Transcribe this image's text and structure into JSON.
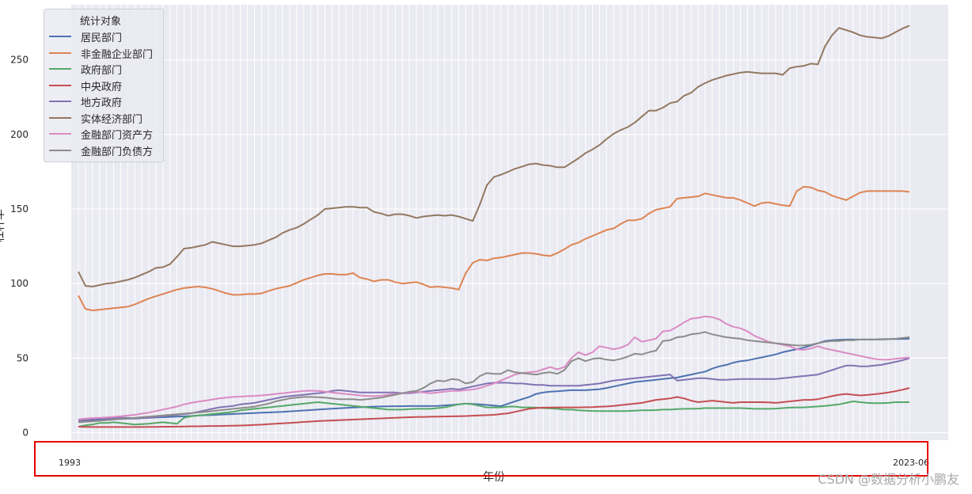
{
  "chart_data": {
    "type": "line",
    "xlabel": "年份",
    "ylabel": "杠杆率",
    "ylim": [
      -5,
      287
    ],
    "yticks": [
      0,
      50,
      100,
      150,
      200,
      250
    ],
    "x_first_label": "1993",
    "x_last_label": "2023-06",
    "grid": true,
    "legend": {
      "title": "统计对象",
      "placement": "top-left"
    },
    "n_points": 119,
    "series": [
      {
        "name": "居民部门",
        "color": "#4c72b0",
        "values": [
          8.0,
          8.2,
          8.4,
          8.6,
          8.8,
          9.0,
          9.2,
          9.4,
          9.6,
          9.8,
          10.0,
          10.2,
          10.4,
          10.6,
          10.8,
          11.0,
          11.2,
          11.5,
          11.7,
          11.9,
          12.1,
          12.3,
          12.5,
          12.8,
          13.0,
          13.2,
          13.4,
          13.6,
          13.8,
          14.0,
          14.3,
          14.6,
          14.9,
          15.2,
          15.5,
          15.8,
          16.1,
          16.4,
          16.6,
          16.9,
          17.1,
          17.3,
          17.5,
          17.6,
          17.7,
          17.8,
          17.8,
          17.9,
          17.9,
          17.9,
          17.9,
          18.0,
          18.3,
          18.6,
          19.0,
          19.5,
          19.3,
          19.0,
          18.6,
          18.2,
          17.8,
          19.5,
          21.0,
          22.5,
          24.0,
          26.0,
          27.0,
          27.5,
          27.8,
          28.2,
          28.5,
          28.5,
          28.5,
          28.8,
          29.2,
          30.0,
          31.0,
          32.0,
          33.0,
          34.0,
          34.5,
          35.0,
          35.5,
          36.0,
          36.5,
          37.0,
          38.0,
          39.0,
          40.0,
          41.0,
          43.0,
          44.5,
          45.5,
          47.0,
          48.0,
          48.5,
          49.5,
          50.5,
          51.5,
          52.5,
          54.0,
          55.0,
          56.0,
          57.0,
          58.5,
          60.0,
          61.5,
          62.0,
          62.3,
          62.5,
          62.5,
          62.5,
          62.5,
          62.5,
          62.7,
          62.8,
          62.8,
          62.9,
          63.0
        ]
      },
      {
        "name": "非金融企业部门",
        "color": "#dd8452",
        "values": [
          92,
          83,
          82,
          82.5,
          83,
          83.5,
          84,
          84.5,
          86,
          88,
          90,
          91.5,
          93,
          94.5,
          96,
          97,
          97.5,
          98,
          97.5,
          96.5,
          95,
          93.5,
          92.5,
          92.5,
          93,
          93,
          93.5,
          95,
          96.5,
          97.5,
          98.5,
          100.5,
          102.5,
          104,
          105.5,
          106.5,
          106.5,
          106,
          106,
          107,
          104,
          103,
          101.5,
          102.5,
          102.5,
          101,
          100,
          100.5,
          101,
          99.5,
          97.5,
          98,
          97.5,
          97,
          96,
          107,
          114,
          116,
          115.5,
          117,
          117.5,
          118.5,
          119.5,
          120.5,
          120.5,
          120,
          119,
          118.5,
          120.5,
          123,
          126,
          127.5,
          130,
          132,
          134,
          136,
          137,
          140,
          142.5,
          142.5,
          143.5,
          147,
          149.5,
          150.5,
          151.5,
          157,
          157.5,
          158,
          158.5,
          160.5,
          159.5,
          158.5,
          157.5,
          157.5,
          156,
          154,
          152,
          154,
          154.5,
          153.5,
          152.5,
          152,
          162,
          165,
          164.5,
          162.5,
          161.5,
          159,
          157.5,
          156,
          158.5,
          161,
          162,
          162,
          162,
          162,
          162,
          162,
          161.5
        ]
      },
      {
        "name": "政府部门",
        "color": "#55a868",
        "values": [
          4.0,
          5.0,
          5.5,
          6.5,
          6.5,
          7.0,
          6.5,
          6.0,
          5.5,
          5.8,
          6.0,
          6.5,
          7.0,
          6.5,
          6.0,
          10.0,
          11.0,
          11.5,
          12.0,
          12.5,
          13.0,
          13.5,
          14.0,
          15.0,
          15.5,
          16.0,
          16.5,
          17.0,
          17.5,
          18.0,
          18.5,
          19.0,
          19.5,
          20.0,
          20.5,
          20.0,
          19.5,
          19.0,
          18.5,
          18.0,
          17.5,
          17.0,
          16.5,
          16.0,
          15.5,
          15.5,
          15.5,
          15.8,
          16.0,
          16.0,
          16.0,
          16.5,
          17.0,
          18.0,
          19.0,
          19.5,
          19.0,
          18.0,
          17.0,
          17.0,
          17.0,
          17.5,
          17.5,
          17.0,
          17.0,
          16.8,
          16.5,
          16.3,
          16.0,
          15.5,
          15.5,
          15.0,
          14.8,
          14.6,
          14.5,
          14.5,
          14.5,
          14.5,
          14.6,
          14.8,
          15.0,
          15.0,
          15.2,
          15.5,
          15.5,
          15.8,
          16.0,
          16.0,
          16.2,
          16.5,
          16.5,
          16.5,
          16.5,
          16.5,
          16.5,
          16.3,
          16.0,
          16.0,
          16.0,
          16.2,
          16.5,
          16.8,
          17.0,
          17.0,
          17.3,
          17.6,
          18.0,
          18.5,
          19.0,
          20.0,
          21.0,
          20.5,
          20.0,
          19.8,
          19.8,
          20.0,
          20.5,
          20.5,
          20.5
        ]
      },
      {
        "name": "中央政府",
        "color": "#c44e52",
        "values": [
          4.0,
          3.9,
          3.8,
          3.8,
          3.8,
          3.8,
          3.8,
          3.8,
          3.8,
          3.8,
          3.9,
          3.9,
          4.0,
          4.0,
          4.1,
          4.2,
          4.3,
          4.3,
          4.4,
          4.5,
          4.5,
          4.6,
          4.7,
          4.8,
          5.0,
          5.2,
          5.4,
          5.7,
          6.0,
          6.3,
          6.6,
          6.9,
          7.2,
          7.5,
          7.8,
          8.0,
          8.2,
          8.4,
          8.6,
          8.8,
          9.0,
          9.2,
          9.4,
          9.6,
          9.8,
          10.0,
          10.2,
          10.4,
          10.5,
          10.6,
          10.7,
          10.8,
          10.9,
          11.0,
          11.1,
          11.2,
          11.4,
          11.6,
          11.8,
          12.0,
          12.5,
          13.0,
          14.0,
          15.0,
          16.0,
          16.5,
          16.8,
          16.9,
          17.0,
          17.0,
          17.0,
          17.0,
          17.1,
          17.2,
          17.4,
          17.6,
          18.0,
          18.5,
          19.0,
          19.5,
          20.0,
          21.0,
          22.0,
          22.5,
          23.0,
          24.0,
          23.0,
          21.5,
          20.5,
          21.0,
          21.5,
          21.0,
          20.5,
          20.0,
          20.5,
          20.5,
          20.5,
          20.5,
          20.3,
          20.0,
          20.5,
          21.0,
          21.5,
          22.0,
          22.0,
          22.5,
          23.5,
          24.5,
          25.5,
          26.0,
          25.5,
          25.0,
          25.3,
          25.8,
          26.3,
          27.0,
          27.8,
          28.8,
          30.0
        ]
      },
      {
        "name": "地方政府",
        "color": "#8172b3",
        "values": [
          8.0,
          8.5,
          9.0,
          9.5,
          9.5,
          9.8,
          10.0,
          10.0,
          9.5,
          9.8,
          10.0,
          10.5,
          11.0,
          11.5,
          12.0,
          12.5,
          13.0,
          14.0,
          15.0,
          16.0,
          17.0,
          17.5,
          18.0,
          19.0,
          19.5,
          20.0,
          21.0,
          22.0,
          23.0,
          24.0,
          24.5,
          25.0,
          25.5,
          26.0,
          26.5,
          27.0,
          28.0,
          28.5,
          28.0,
          27.5,
          27.0,
          27.0,
          27.0,
          27.0,
          27.0,
          27.0,
          26.5,
          26.5,
          27.0,
          27.5,
          28.0,
          28.5,
          29.0,
          29.5,
          29.0,
          30.0,
          31.0,
          32.0,
          33.0,
          33.5,
          33.5,
          33.5,
          33.0,
          33.0,
          32.5,
          32.0,
          32.0,
          31.5,
          31.5,
          31.5,
          31.5,
          31.5,
          32.0,
          32.5,
          33.0,
          34.0,
          35.0,
          35.5,
          36.0,
          36.5,
          37.0,
          37.5,
          38.0,
          38.5,
          39.0,
          35.0,
          35.5,
          36.0,
          36.5,
          36.5,
          36.0,
          35.5,
          35.5,
          35.8,
          36.0,
          36.0,
          36.0,
          36.0,
          36.0,
          36.0,
          36.5,
          37.0,
          37.5,
          38.0,
          38.5,
          39.0,
          40.5,
          42.0,
          43.5,
          45.0,
          45.0,
          44.5,
          44.5,
          45.0,
          45.5,
          46.5,
          47.5,
          48.5,
          50.0
        ]
      },
      {
        "name": "实体经济部门",
        "color": "#937860",
        "values": [
          108,
          98.5,
          98,
          99,
          100,
          100.5,
          101.5,
          102.5,
          104,
          106,
          108,
          110.5,
          111,
          113,
          118,
          123.5,
          124,
          125,
          126,
          128,
          127,
          126,
          125,
          125,
          125.5,
          126,
          127,
          129,
          131,
          134,
          136,
          137.5,
          140,
          143,
          146,
          150,
          150.5,
          151,
          151.5,
          151.5,
          151,
          151,
          148,
          147,
          145.5,
          146.5,
          146.5,
          145.5,
          144,
          145,
          145.5,
          146,
          145.5,
          146,
          145,
          143.5,
          142,
          153,
          166,
          171.5,
          173,
          175,
          177,
          178.5,
          180,
          180.5,
          179.5,
          179,
          178,
          178,
          181,
          184,
          187.5,
          190,
          193,
          197,
          200.5,
          203,
          205,
          208,
          212,
          216,
          216,
          218,
          221,
          222,
          226,
          228,
          232,
          234.5,
          236.5,
          238,
          239.5,
          240.5,
          241.5,
          242,
          241.5,
          241,
          241,
          241,
          240,
          244.5,
          245.5,
          246,
          247.5,
          247,
          259,
          266.5,
          271.5,
          270,
          268.5,
          266.5,
          265.5,
          265,
          264.5,
          266,
          268.5,
          271,
          273
        ]
      },
      {
        "name": "金融部门资产方",
        "color": "#da8bc3",
        "values": [
          9.0,
          9.5,
          9.8,
          10.0,
          10.3,
          10.6,
          11.0,
          11.5,
          12.0,
          12.8,
          13.5,
          14.5,
          15.5,
          16.5,
          17.5,
          19.0,
          20.0,
          20.8,
          21.5,
          22.3,
          23.0,
          23.5,
          24.0,
          24.2,
          24.5,
          24.7,
          25.0,
          25.5,
          26.0,
          26.5,
          27.0,
          27.5,
          28.0,
          28.2,
          28.0,
          27.5,
          27.0,
          26.5,
          26.0,
          25.5,
          25.0,
          24.7,
          24.5,
          24.8,
          25.5,
          26.0,
          26.5,
          27.0,
          27.5,
          27.0,
          26.5,
          27.0,
          27.5,
          28.0,
          28.0,
          28.5,
          29.0,
          30.0,
          31.5,
          33.0,
          35.0,
          37.0,
          39.0,
          40.0,
          40.5,
          41.0,
          42.5,
          44.0,
          42.5,
          44.0,
          50.0,
          54.0,
          52.0,
          54.0,
          58.0,
          57.0,
          56.0,
          57.0,
          59.0,
          64.0,
          61.0,
          62.0,
          63.0,
          68.0,
          68.5,
          71.0,
          74.0,
          76.5,
          77.0,
          78.0,
          77.5,
          76.0,
          73.0,
          71.0,
          70.0,
          68.0,
          65.0,
          63.0,
          61.0,
          60.0,
          59.0,
          58.0,
          56.0,
          55.5,
          56.5,
          58.0,
          56.5,
          55.5,
          54.5,
          53.5,
          52.5,
          51.5,
          50.5,
          49.5,
          49.0,
          49.0,
          49.5,
          50.0,
          50.5
        ]
      },
      {
        "name": "金融部门负债方",
        "color": "#8c8c8c",
        "values": [
          7.0,
          7.3,
          7.6,
          8.0,
          8.4,
          8.8,
          9.2,
          9.6,
          10.0,
          10.4,
          10.8,
          11.2,
          11.6,
          12.0,
          12.4,
          12.8,
          13.2,
          13.6,
          14.0,
          14.5,
          15.0,
          15.5,
          16.0,
          16.5,
          17.0,
          17.5,
          18.5,
          19.5,
          21.0,
          22.0,
          23.0,
          23.5,
          24.0,
          24.0,
          23.8,
          23.5,
          23.0,
          22.5,
          22.5,
          22.5,
          22.0,
          22.5,
          23.0,
          23.5,
          24.5,
          25.5,
          26.5,
          27.5,
          28.0,
          30.0,
          33.0,
          35.0,
          34.5,
          36.0,
          35.5,
          33.0,
          34.0,
          38.0,
          40.0,
          39.5,
          39.5,
          42.0,
          40.5,
          40.0,
          39.5,
          39.0,
          40.0,
          40.5,
          39.5,
          42.0,
          48.0,
          50.0,
          48.0,
          49.5,
          50.0,
          49.0,
          48.5,
          49.5,
          51.0,
          53.0,
          52.5,
          54.0,
          55.0,
          61.5,
          62.0,
          64.0,
          64.5,
          66.0,
          66.5,
          67.5,
          66.0,
          65.0,
          64.0,
          63.5,
          63.0,
          62.0,
          61.5,
          61.0,
          60.5,
          60.0,
          59.5,
          59.0,
          58.5,
          58.5,
          59.0,
          60.0,
          61.0,
          61.5,
          61.5,
          62.0,
          62.0,
          62.5,
          62.5,
          62.5,
          62.5,
          62.7,
          63.0,
          63.5,
          64.0
        ]
      }
    ]
  },
  "watermark": "CSDN @数据分析小鹏友"
}
